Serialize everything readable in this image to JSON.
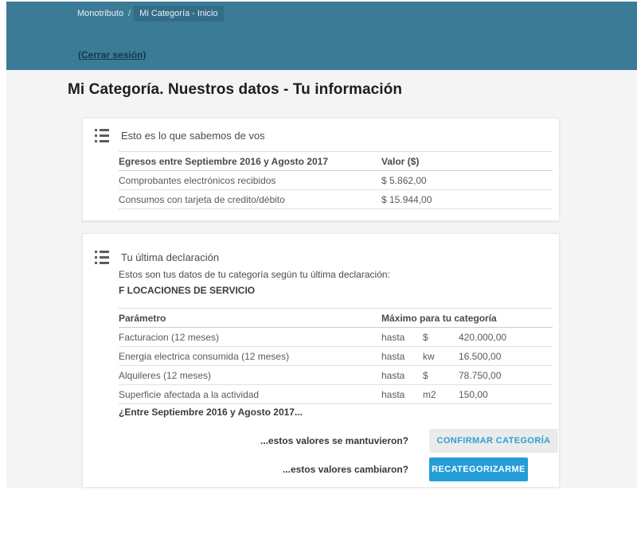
{
  "colors": {
    "header_teal": "#3b7b96",
    "breadcrumb_highlight": "#336d88",
    "accent_blue": "#249dd8",
    "content_background": "#f4f4f4"
  },
  "header": {
    "breadcrumb": {
      "root": "Monotributo",
      "separator": "/",
      "current": "Mi Categoría - Inicio"
    },
    "logout_label": "(Cerrar sesión)"
  },
  "page": {
    "title": "Mi Categoría. Nuestros datos - Tu información"
  },
  "known_data_card": {
    "icon": "list-icon",
    "title": "Esto es lo que sabemos de vos",
    "table": {
      "headers": [
        "Egresos entre Septiembre 2016 y Agosto 2017",
        "Valor ($)"
      ],
      "rows": [
        {
          "label": "Comprobantes electrónicos recibidos",
          "value": "$ 5.862,00"
        },
        {
          "label": "Consumos con tarjeta de credito/débito",
          "value": "$ 15.944,00"
        }
      ]
    }
  },
  "declaration_card": {
    "icon": "list-icon",
    "title": "Tu última declaración",
    "subtitle": "Estos son tus datos de tu categoría según tu última declaración:",
    "category": "F LOCACIONES DE SERVICIO",
    "table": {
      "headers": [
        "Parámetro",
        "Máximo para tu categoría"
      ],
      "rows": [
        {
          "label": "Facturacion (12 meses)",
          "qualifier": "hasta",
          "unit": "$",
          "value": "420.000,00"
        },
        {
          "label": "Energia electrica consumida (12 meses)",
          "qualifier": "hasta",
          "unit": "kw",
          "value": "16.500,00"
        },
        {
          "label": "Alquileres (12 meses)",
          "qualifier": "hasta",
          "unit": "$",
          "value": "78.750,00"
        },
        {
          "label": "Superficie afectada a la actividad",
          "qualifier": "hasta",
          "unit": "m2",
          "value": "150,00"
        }
      ]
    },
    "question_heading": "¿Entre Septiembre 2016 y Agosto 2017...",
    "actions": [
      {
        "question": "...estos valores se mantuvieron?",
        "button": "CONFIRMAR CATEGORÍA",
        "style": "secondary"
      },
      {
        "question": "...estos valores cambiaron?",
        "button": "RECATEGORIZARME",
        "style": "primary"
      }
    ]
  }
}
